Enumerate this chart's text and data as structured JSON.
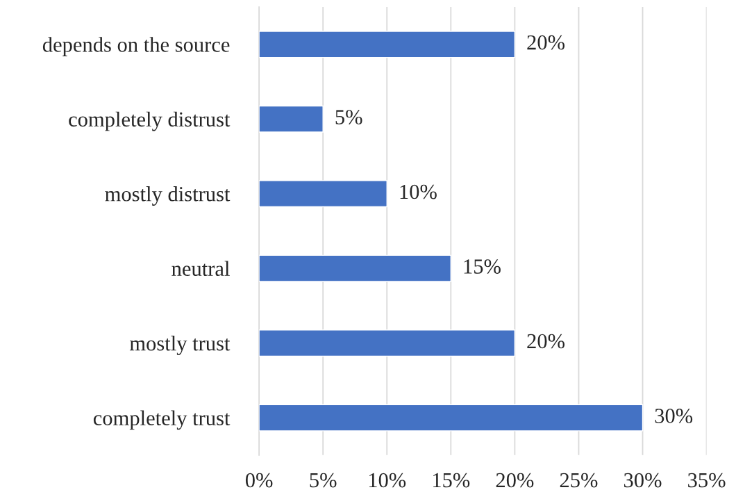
{
  "chart_data": {
    "type": "bar",
    "orientation": "horizontal",
    "categories": [
      "depends on the source",
      "completely distrust",
      "mostly distrust",
      "neutral",
      "mostly trust",
      "completely trust"
    ],
    "values": [
      20,
      5,
      10,
      15,
      20,
      30
    ],
    "value_labels": [
      "20%",
      "5%",
      "10%",
      "15%",
      "20%",
      "30%"
    ],
    "color": "#4472c4",
    "xlim": [
      0,
      35
    ],
    "xticks": [
      {
        "value": 0,
        "label": "0%"
      },
      {
        "value": 5,
        "label": "5%"
      },
      {
        "value": 10,
        "label": "10%"
      },
      {
        "value": 15,
        "label": "15%"
      },
      {
        "value": 20,
        "label": "20%"
      },
      {
        "value": 25,
        "label": "25%"
      },
      {
        "value": 30,
        "label": "30%"
      },
      {
        "value": 35,
        "label": "35%"
      }
    ],
    "grid": "x",
    "legend": false
  }
}
